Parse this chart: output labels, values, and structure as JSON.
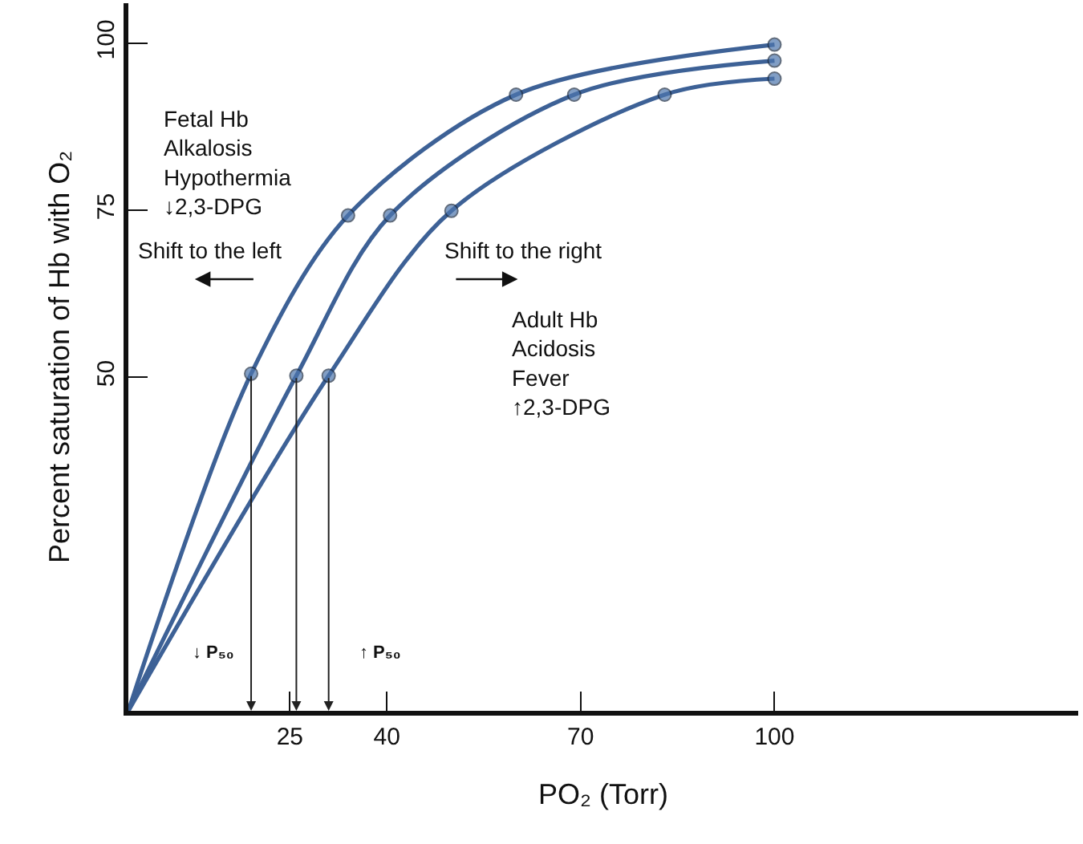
{
  "chart_data": {
    "type": "line",
    "xlabel": "PO₂ (Torr)",
    "ylabel": "Percent saturation of Hb with O₂",
    "series": [
      {
        "color": "#3d6196",
        "x": [
          0,
          19,
          34,
          60,
          100
        ],
        "values": [
          0,
          50.5,
          74.2,
          92.3,
          99.8
        ]
      },
      {
        "color": "#3d6196",
        "x": [
          0,
          26,
          40.5,
          69,
          100
        ],
        "values": [
          0,
          50.2,
          74.2,
          92.3,
          97.4
        ]
      },
      {
        "color": "#3d6196",
        "x": [
          0,
          31,
          50,
          83,
          100
        ],
        "values": [
          0,
          50.2,
          74.9,
          92.3,
          94.7
        ]
      }
    ],
    "xlim": [
      0,
      147
    ],
    "ylim": [
      0,
      106
    ],
    "xticks": [
      25,
      40,
      70,
      100
    ],
    "yticks": [
      50,
      75,
      100
    ],
    "legend": false,
    "marker": "circle",
    "line_style": "solid",
    "annotations": [
      "Fetal Hb\nAlkalosis\nHypothermia\n↓2,3-DPG",
      "Shift to the left",
      "Shift to the right",
      "Adult Hb\nAcidosis\nFever\n↑2,3-DPG",
      "↓ P₅₀",
      "↑ P₅₀"
    ]
  }
}
